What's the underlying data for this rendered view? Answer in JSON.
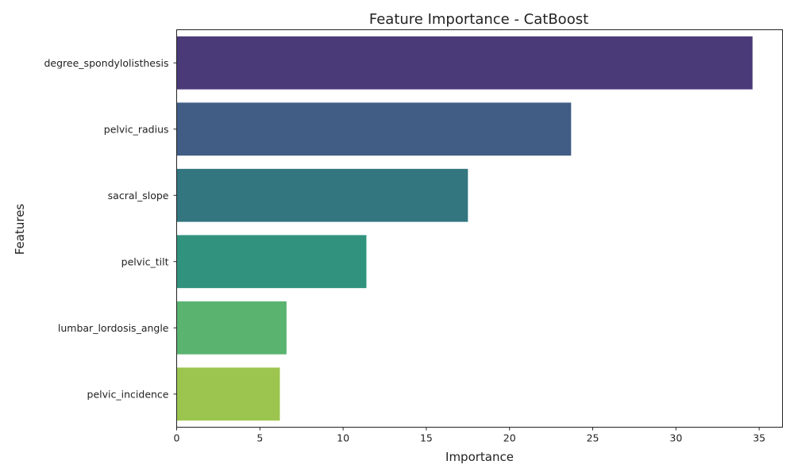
{
  "chart_data": {
    "type": "bar",
    "orientation": "horizontal",
    "title": "Feature Importance - CatBoost",
    "xlabel": "Importance",
    "ylabel": "Features",
    "categories": [
      "degree_spondylolisthesis",
      "pelvic_radius",
      "sacral_slope",
      "pelvic_tilt",
      "lumbar_lordosis_angle",
      "pelvic_incidence"
    ],
    "values": [
      34.6,
      23.7,
      17.5,
      11.4,
      6.6,
      6.2
    ],
    "colors": [
      "#4a3a78",
      "#415d85",
      "#33767f",
      "#31937e",
      "#5bb370",
      "#9bc54e"
    ],
    "xlim": [
      0,
      36.4
    ],
    "xticks": [
      0,
      5,
      10,
      15,
      20,
      25,
      30,
      35
    ],
    "grid": false,
    "legend": "none"
  }
}
